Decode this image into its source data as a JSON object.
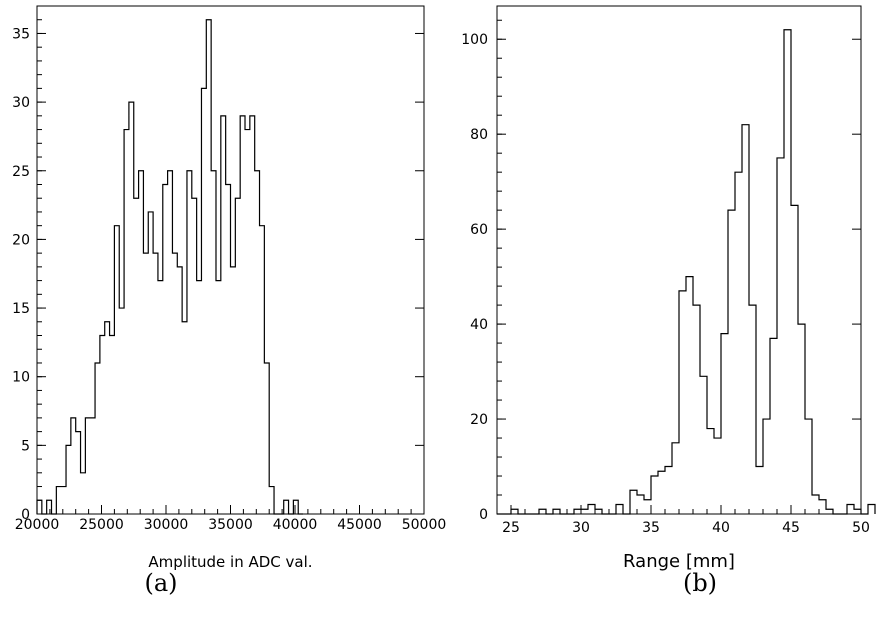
{
  "chart_data": [
    {
      "type": "histogram",
      "panel_label": "(a)",
      "xlabel": "Amplitude in ADC val.",
      "ylabel": "",
      "xlim": [
        20000,
        50000
      ],
      "ylim": [
        0,
        37
      ],
      "x_ticks": [
        20000,
        25000,
        30000,
        35000,
        40000,
        45000,
        50000
      ],
      "y_ticks": [
        0,
        5,
        10,
        15,
        20,
        25,
        30,
        35
      ],
      "bin_start": 20000,
      "bin_width": 375,
      "counts": [
        1,
        0,
        1,
        0,
        2,
        2,
        5,
        7,
        6,
        3,
        7,
        7,
        11,
        13,
        14,
        13,
        21,
        15,
        28,
        30,
        23,
        25,
        19,
        22,
        19,
        17,
        24,
        25,
        19,
        18,
        14,
        25,
        23,
        17,
        31,
        36,
        25,
        17,
        29,
        24,
        18,
        23,
        29,
        28,
        29,
        25,
        21,
        11,
        2,
        0,
        0,
        1,
        0,
        1,
        0
      ],
      "grid": false,
      "line_color": "#000000"
    },
    {
      "type": "histogram",
      "panel_label": "(b)",
      "xlabel": "Range [mm]",
      "ylabel": "",
      "xlim": [
        24,
        50
      ],
      "ylim": [
        0,
        107
      ],
      "x_ticks": [
        25,
        30,
        35,
        40,
        45,
        50
      ],
      "y_ticks": [
        0,
        20,
        40,
        60,
        80,
        100
      ],
      "bin_start": 24,
      "bin_width": 0.5,
      "counts": [
        0,
        0,
        1,
        0,
        0,
        0,
        1,
        0,
        1,
        0,
        0,
        1,
        1,
        2,
        1,
        0,
        0,
        2,
        0,
        5,
        4,
        3,
        8,
        9,
        10,
        15,
        47,
        50,
        44,
        29,
        18,
        16,
        38,
        64,
        72,
        82,
        44,
        10,
        20,
        37,
        75,
        102,
        65,
        40,
        20,
        4,
        3,
        1,
        0,
        0,
        2,
        1,
        0,
        2
      ],
      "grid": false,
      "line_color": "#000000"
    }
  ]
}
